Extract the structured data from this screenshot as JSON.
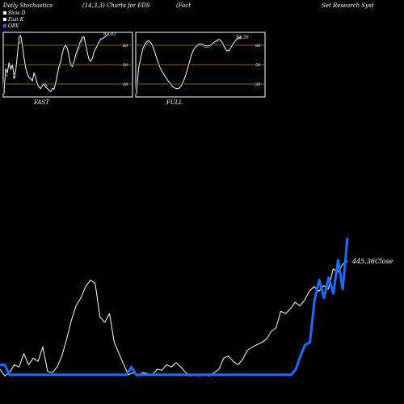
{
  "header": {
    "title": "Daily Stochastics",
    "params": "(14,3,3) Charts for FDS",
    "company_part1": "(Fact",
    "company_part2": "Set Research Syst"
  },
  "legend": [
    {
      "label": "Slow D",
      "color": "#ffffff"
    },
    {
      "label": "Fast K",
      "color": "#ffffff"
    },
    {
      "label": "OBV",
      "color": "#1e6cff"
    }
  ],
  "colors": {
    "background": "#000000",
    "band": "#8a6a00",
    "slow": "#ffffff",
    "fast": "#ffffff",
    "obv": "#1e6cff",
    "close": "#ffffff"
  },
  "chart_data": [
    {
      "type": "line",
      "title": "",
      "xlabel": "FAST",
      "ylim": [
        0,
        100
      ],
      "yticks": [
        20,
        50,
        80
      ],
      "last_value_label": "97.83",
      "series": [
        {
          "name": "Slow D",
          "values": [
            5,
            38,
            33,
            48,
            40,
            45,
            28,
            35,
            55,
            80,
            87,
            78,
            62,
            48,
            38,
            32,
            30,
            26,
            35,
            32,
            22,
            18,
            15,
            20,
            22,
            20,
            15,
            12,
            10,
            15,
            12,
            20,
            30,
            42,
            50,
            63,
            73,
            78,
            77,
            67,
            55,
            48,
            51,
            59,
            68,
            75,
            82,
            88,
            90,
            83,
            72,
            62,
            57,
            57,
            67,
            72,
            77,
            82,
            87,
            89,
            91,
            93,
            95,
            97
          ]
        },
        {
          "name": "Fast K",
          "values": [
            10,
            43,
            38,
            53,
            43,
            50,
            33,
            40,
            65,
            92,
            95,
            80,
            60,
            45,
            35,
            30,
            28,
            25,
            37,
            30,
            20,
            15,
            13,
            18,
            20,
            15,
            13,
            10,
            8,
            13,
            12,
            22,
            35,
            48,
            55,
            68,
            77,
            80,
            75,
            62,
            50,
            47,
            55,
            65,
            73,
            80,
            87,
            92,
            93,
            80,
            68,
            58,
            55,
            60,
            70,
            75,
            80,
            85,
            90,
            90,
            92,
            94,
            96,
            98
          ]
        }
      ]
    },
    {
      "type": "line",
      "title": "",
      "xlabel": "FULL",
      "ylim": [
        0,
        100
      ],
      "yticks": [
        20,
        50,
        80
      ],
      "last_value_label": "93.26",
      "series": [
        {
          "name": "Slow D",
          "values": [
            5,
            40,
            55,
            70,
            78,
            83,
            85,
            82,
            75,
            65,
            55,
            45,
            38,
            33,
            28,
            23,
            20,
            15,
            13,
            12,
            12,
            15,
            20,
            28,
            38,
            50,
            62,
            70,
            75,
            78,
            80,
            80,
            78,
            77,
            77,
            78,
            80,
            83,
            85,
            87,
            87,
            82,
            75,
            70,
            70,
            75,
            80,
            85,
            88,
            90,
            91
          ]
        },
        {
          "name": "Fast K",
          "values": [
            8,
            45,
            60,
            75,
            82,
            86,
            87,
            83,
            76,
            66,
            56,
            47,
            40,
            35,
            30,
            25,
            21,
            17,
            14,
            13,
            13,
            16,
            22,
            30,
            40,
            52,
            64,
            72,
            77,
            80,
            82,
            82,
            80,
            79,
            79,
            80,
            82,
            85,
            87,
            89,
            88,
            83,
            76,
            71,
            72,
            77,
            82,
            87,
            90,
            92,
            93
          ]
        }
      ]
    },
    {
      "type": "line",
      "title": "",
      "ylim": [
        0,
        100
      ],
      "last_value_label": "445.36",
      "last_value_suffix": "Close",
      "series": [
        {
          "name": "Close",
          "values": [
            8,
            2,
            5,
            12,
            10,
            22,
            12,
            18,
            15,
            28,
            6,
            5,
            10,
            20,
            35,
            52,
            65,
            72,
            82,
            88,
            85,
            55,
            50,
            58,
            32,
            22,
            12,
            3,
            5,
            2,
            5,
            4,
            3,
            8,
            7,
            12,
            10,
            14,
            10,
            5,
            2,
            3,
            2,
            3,
            2,
            5,
            8,
            18,
            20,
            15,
            12,
            17,
            25,
            28,
            30,
            32,
            35,
            42,
            45,
            60,
            58,
            62,
            68,
            65,
            70,
            78,
            82,
            78,
            83,
            80,
            98,
            95,
            102,
            105
          ]
        },
        {
          "name": "OBV",
          "values": [
            12,
            12,
            3,
            3,
            3,
            3,
            3,
            3,
            3,
            3,
            3,
            3,
            3,
            3,
            3,
            3,
            3,
            3,
            3,
            3,
            3,
            3,
            3,
            3,
            3,
            3,
            3,
            3,
            10,
            3,
            3,
            3,
            3,
            3,
            3,
            3,
            3,
            3,
            3,
            3,
            3,
            3,
            3,
            3,
            3,
            3,
            3,
            3,
            3,
            3,
            3,
            3,
            3,
            3,
            3,
            3,
            3,
            3,
            3,
            3,
            3,
            3,
            3,
            8,
            20,
            30,
            32,
            70,
            88,
            72,
            90,
            76,
            106,
            80,
            126
          ]
        }
      ]
    }
  ]
}
